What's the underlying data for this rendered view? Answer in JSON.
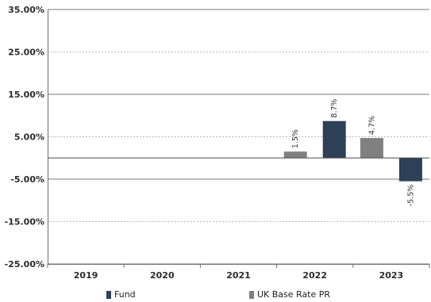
{
  "chart_data": {
    "type": "bar",
    "categories": [
      "2019",
      "2020",
      "2021",
      "2022",
      "2023"
    ],
    "series": [
      {
        "name": "Fund",
        "values": [
          null,
          null,
          null,
          8.7,
          -5.5
        ],
        "color": "#2e4057",
        "labels": [
          "",
          "",
          "",
          "8.7%",
          "-5.5%"
        ]
      },
      {
        "name": "UK Base Rate PR",
        "values": [
          null,
          null,
          null,
          1.5,
          4.7
        ],
        "color": "#808080",
        "labels": [
          "",
          "",
          "",
          "1.5%",
          "4.7%"
        ]
      }
    ],
    "yticks": [
      "35.00%",
      "25.00%",
      "15.00%",
      "5.00%",
      "-5.00%",
      "-15.00%",
      "-25.00%"
    ],
    "ytick_values": [
      35,
      25,
      15,
      5,
      -5,
      -15,
      -25
    ],
    "ylim": [
      -25,
      35
    ],
    "grid": true,
    "legend": "bottom-center",
    "title": "",
    "xlabel": "",
    "ylabel": ""
  }
}
